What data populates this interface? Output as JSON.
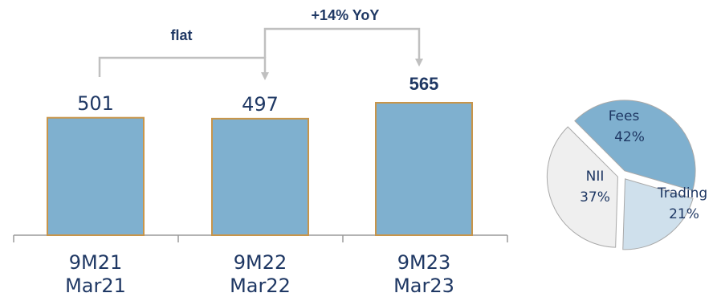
{
  "chart_data": [
    {
      "type": "bar",
      "categories": [
        "9M21\nMar21",
        "9M22\nMar22",
        "9M23\nMar23"
      ],
      "category_lines": [
        [
          "9M21",
          "Mar21"
        ],
        [
          "9M22",
          "Mar22"
        ],
        [
          "9M23",
          "Mar23"
        ]
      ],
      "values": [
        501,
        497,
        565
      ],
      "value_labels": [
        "501",
        "497",
        "565"
      ],
      "highlight_index": 2,
      "annotations": {
        "flat": "flat",
        "yoy": "+14% YoY"
      },
      "ylim": [
        0,
        565
      ],
      "colors": {
        "bar": "#7fb0cf",
        "bar_edge": "#c8954a",
        "text": "#1f3864",
        "arrow": "#c0c0c0",
        "axis": "#9a9a9a"
      }
    },
    {
      "type": "pie",
      "slices": [
        {
          "label": "Fees",
          "value": 42,
          "value_label": "42%",
          "color": "#7fb0cf"
        },
        {
          "label": "Trading",
          "value": 21,
          "value_label": "21%",
          "color": "#cfe0ec"
        },
        {
          "label": "NII",
          "value": 37,
          "value_label": "37%",
          "color": "#efefef"
        }
      ]
    }
  ]
}
